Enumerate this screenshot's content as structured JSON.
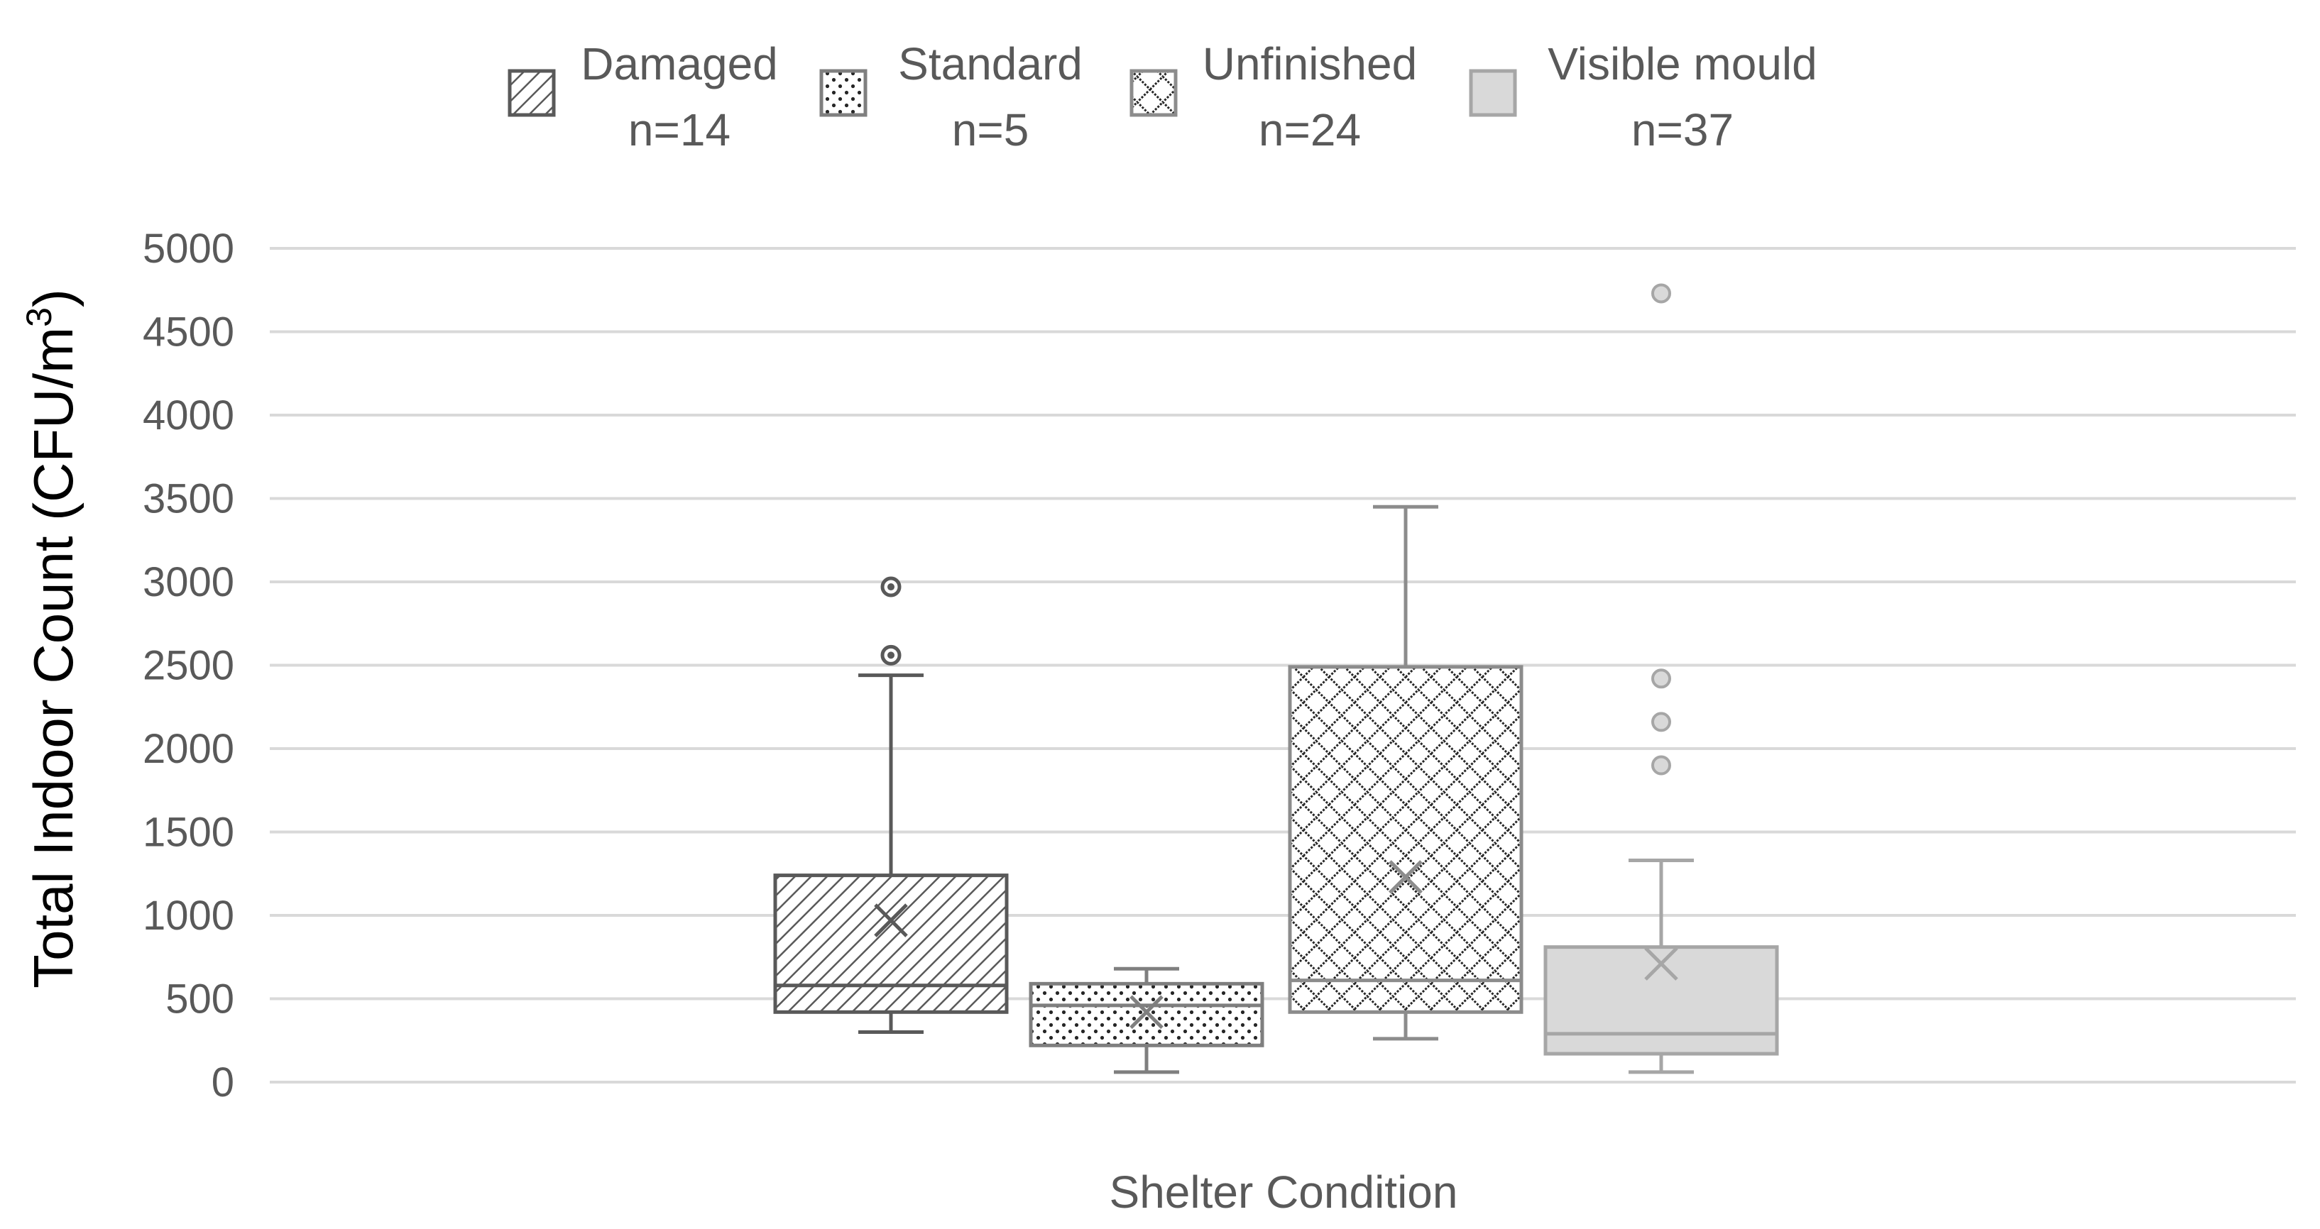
{
  "chart_data": {
    "type": "box",
    "title": "",
    "xlabel": "Shelter Condition",
    "ylabel": "Total Indoor Count (CFU/m",
    "ylabel_superscript": "3",
    "ylabel_close": ")",
    "ylim": [
      0,
      5000
    ],
    "yticks": [
      "0",
      "500",
      "1000",
      "1500",
      "2000",
      "2500",
      "3000",
      "3500",
      "4000",
      "4500",
      "5000"
    ],
    "ytick_values": [
      0,
      500,
      1000,
      1500,
      2000,
      2500,
      3000,
      3500,
      4000,
      4500,
      5000
    ],
    "grid": true,
    "legend_position": "top",
    "series": [
      {
        "name": "Damaged",
        "n_label": "n=14",
        "pattern": "diagonal-hatch",
        "color": "#595959",
        "min": 300,
        "q1": 420,
        "median": 580,
        "q3": 1240,
        "max": 2440,
        "mean": 970,
        "outliers": [
          2560,
          2970
        ]
      },
      {
        "name": "Standard",
        "n_label": "n=5",
        "pattern": "dots",
        "color": "#7f7f7f",
        "min": 60,
        "q1": 220,
        "median": 460,
        "q3": 590,
        "max": 680,
        "mean": 420,
        "outliers": []
      },
      {
        "name": "Unfinished",
        "n_label": "n=24",
        "pattern": "diamond-lattice",
        "color": "#8c8c8c",
        "min": 260,
        "q1": 420,
        "median": 610,
        "q3": 2490,
        "max": 3450,
        "mean": 1230,
        "outliers": []
      },
      {
        "name": "Visible mould",
        "n_label": "n=37",
        "pattern": "solid",
        "color": "#a6a6a6",
        "fill": "#d9d9d9",
        "min": 60,
        "q1": 170,
        "median": 290,
        "q3": 810,
        "max": 1330,
        "mean": 710,
        "outliers": [
          1900,
          2160,
          2420,
          4730
        ]
      }
    ]
  }
}
